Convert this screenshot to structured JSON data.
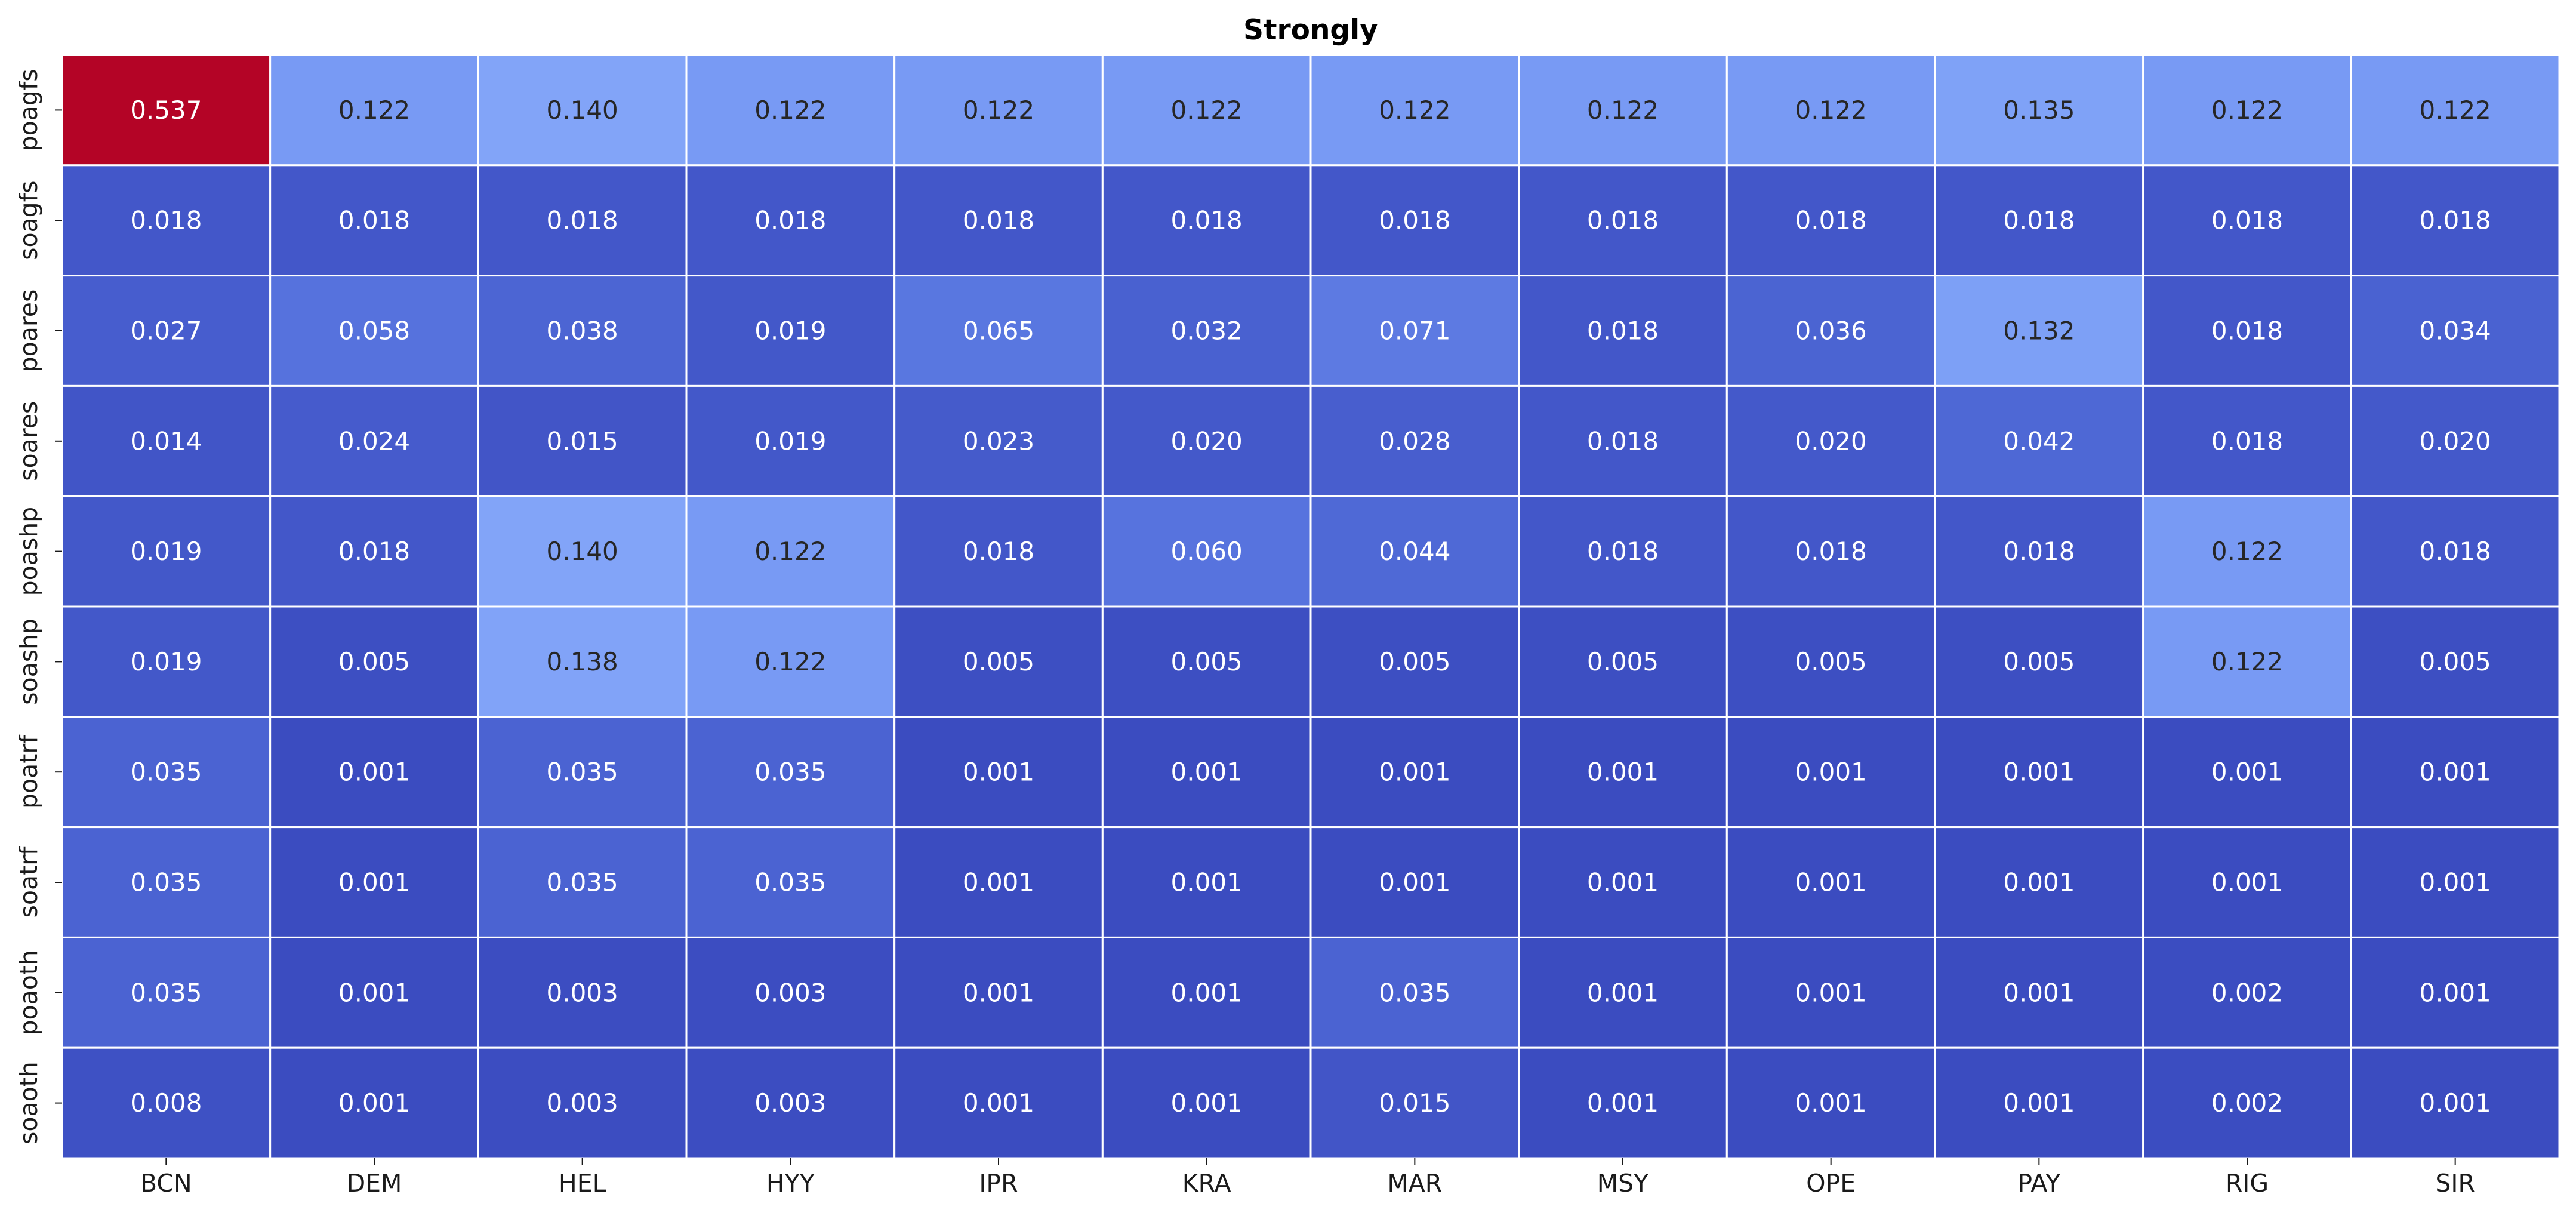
{
  "chart_data": {
    "type": "heatmap",
    "title": "Strongly",
    "xlabel": "",
    "ylabel": "",
    "x_categories": [
      "BCN",
      "DEM",
      "HEL",
      "HYY",
      "IPR",
      "KRA",
      "MAR",
      "MSY",
      "OPE",
      "PAY",
      "RIG",
      "SIR"
    ],
    "y_categories": [
      "poagfs",
      "soagfs",
      "poares",
      "soares",
      "poashp",
      "soashp",
      "poatrf",
      "soatrf",
      "poaoth",
      "soaoth"
    ],
    "values": [
      [
        0.537,
        0.122,
        0.14,
        0.122,
        0.122,
        0.122,
        0.122,
        0.122,
        0.122,
        0.135,
        0.122,
        0.122
      ],
      [
        0.018,
        0.018,
        0.018,
        0.018,
        0.018,
        0.018,
        0.018,
        0.018,
        0.018,
        0.018,
        0.018,
        0.018
      ],
      [
        0.027,
        0.058,
        0.038,
        0.019,
        0.065,
        0.032,
        0.071,
        0.018,
        0.036,
        0.132,
        0.018,
        0.034
      ],
      [
        0.014,
        0.024,
        0.015,
        0.019,
        0.023,
        0.02,
        0.028,
        0.018,
        0.02,
        0.042,
        0.018,
        0.02
      ],
      [
        0.019,
        0.018,
        0.14,
        0.122,
        0.018,
        0.06,
        0.044,
        0.018,
        0.018,
        0.018,
        0.122,
        0.018
      ],
      [
        0.019,
        0.005,
        0.138,
        0.122,
        0.005,
        0.005,
        0.005,
        0.005,
        0.005,
        0.005,
        0.122,
        0.005
      ],
      [
        0.035,
        0.001,
        0.035,
        0.035,
        0.001,
        0.001,
        0.001,
        0.001,
        0.001,
        0.001,
        0.001,
        0.001
      ],
      [
        0.035,
        0.001,
        0.035,
        0.035,
        0.001,
        0.001,
        0.001,
        0.001,
        0.001,
        0.001,
        0.001,
        0.001
      ],
      [
        0.035,
        0.001,
        0.003,
        0.003,
        0.001,
        0.001,
        0.035,
        0.001,
        0.001,
        0.001,
        0.002,
        0.001
      ],
      [
        0.008,
        0.001,
        0.003,
        0.003,
        0.001,
        0.001,
        0.015,
        0.001,
        0.001,
        0.001,
        0.002,
        0.001
      ]
    ],
    "value_format": "0.000",
    "colormap": "coolwarm",
    "color_range": [
      0.001,
      0.537
    ],
    "colorbar": false,
    "grid_color": "#ffffff",
    "dark_text_color": "#262626",
    "light_text_color": "#ffffff"
  }
}
